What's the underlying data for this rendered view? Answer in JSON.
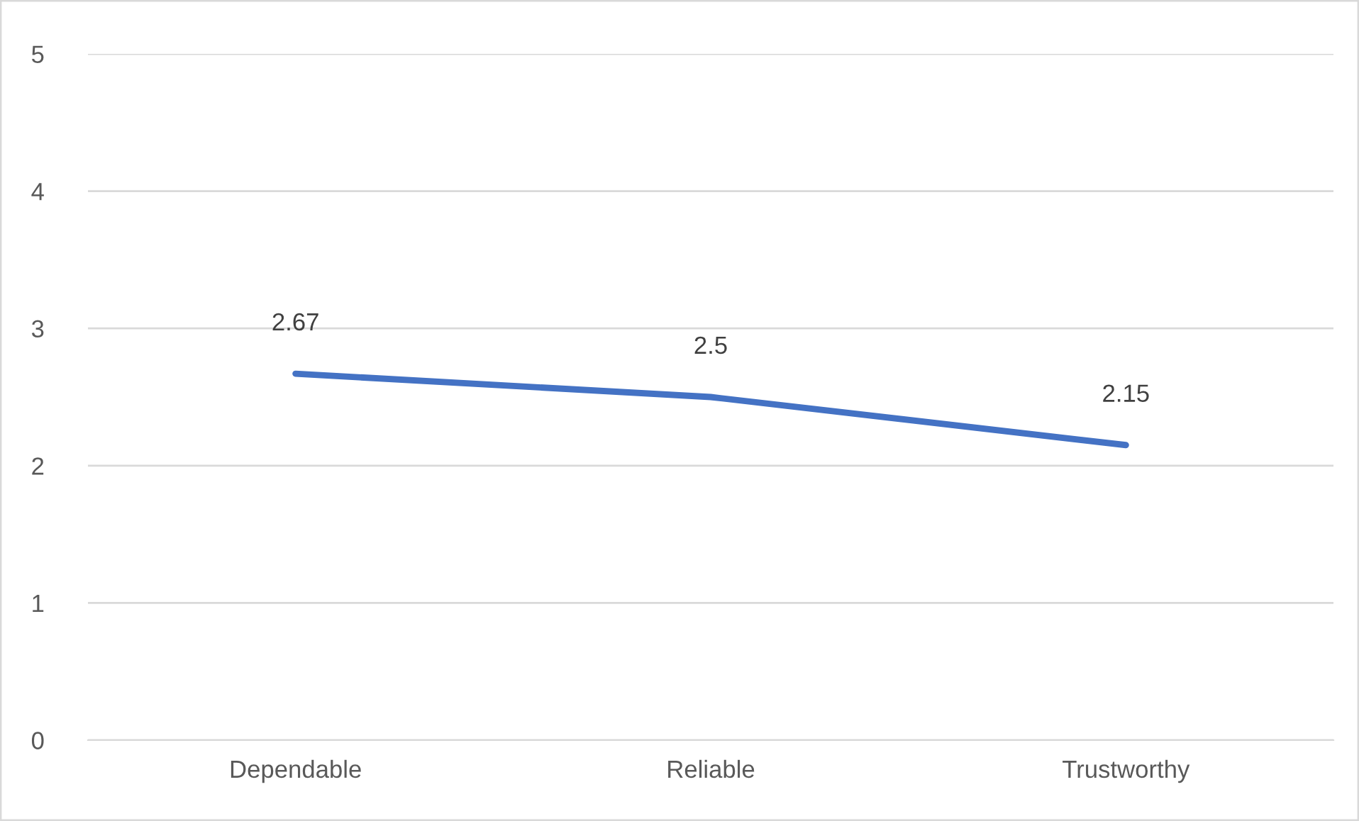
{
  "chart_data": {
    "type": "line",
    "categories": [
      "Dependable",
      "Reliable",
      "Trustworthy"
    ],
    "series": [
      {
        "color": "#4472c4",
        "values": [
          2.67,
          2.5,
          2.15
        ]
      }
    ],
    "ylim": [
      0,
      5
    ],
    "yticks": [
      0,
      1,
      2,
      3,
      4,
      5
    ],
    "grid": "y",
    "data_labels": true,
    "marker": "none",
    "line_style": "solid"
  }
}
